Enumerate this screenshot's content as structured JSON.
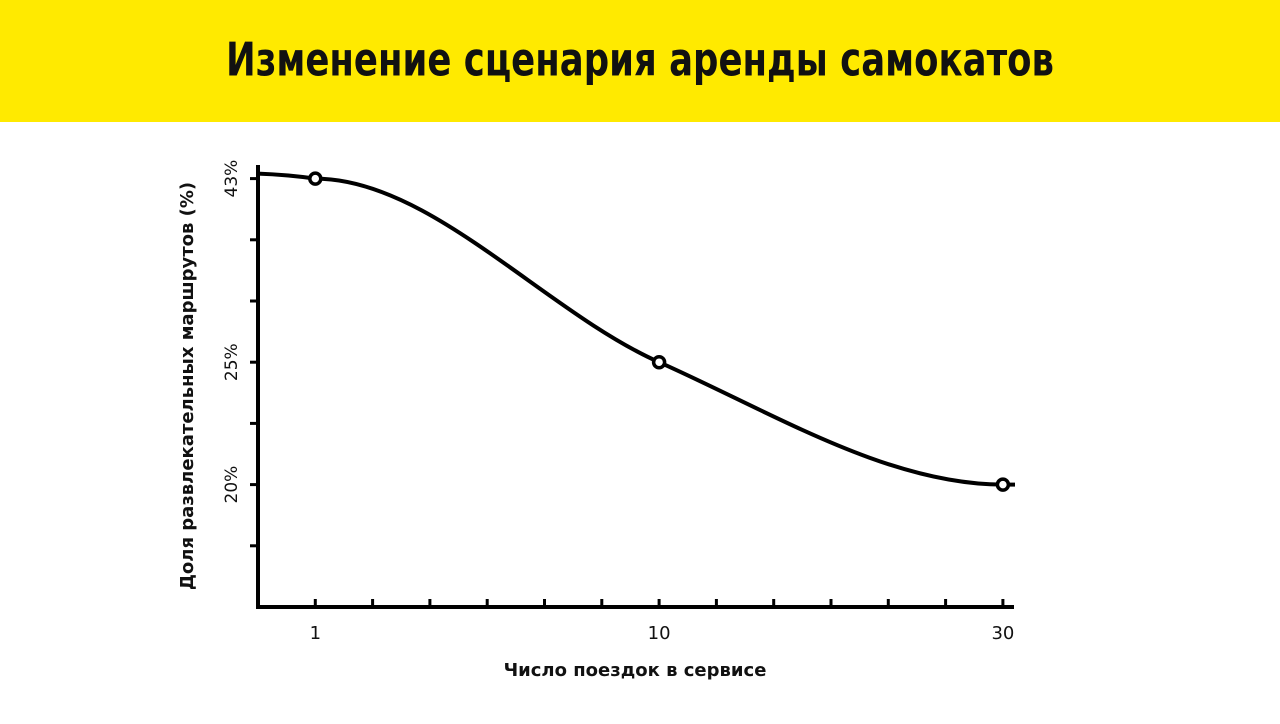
{
  "chart_data": {
    "type": "line",
    "title": "Изменение сценария аренды самокатов",
    "xlabel": "Число поездок в сервисе",
    "ylabel": "Доля развлекательных маршрутов (%)",
    "x": [
      1,
      10,
      30
    ],
    "values": [
      43,
      25,
      20
    ],
    "color": "#000000",
    "xticks": [
      1,
      10,
      30
    ],
    "yticks": [
      {
        "value": 20,
        "label": "20%"
      },
      {
        "value": 25,
        "label": "25%"
      },
      {
        "value": 43,
        "label": "43%"
      }
    ]
  }
}
